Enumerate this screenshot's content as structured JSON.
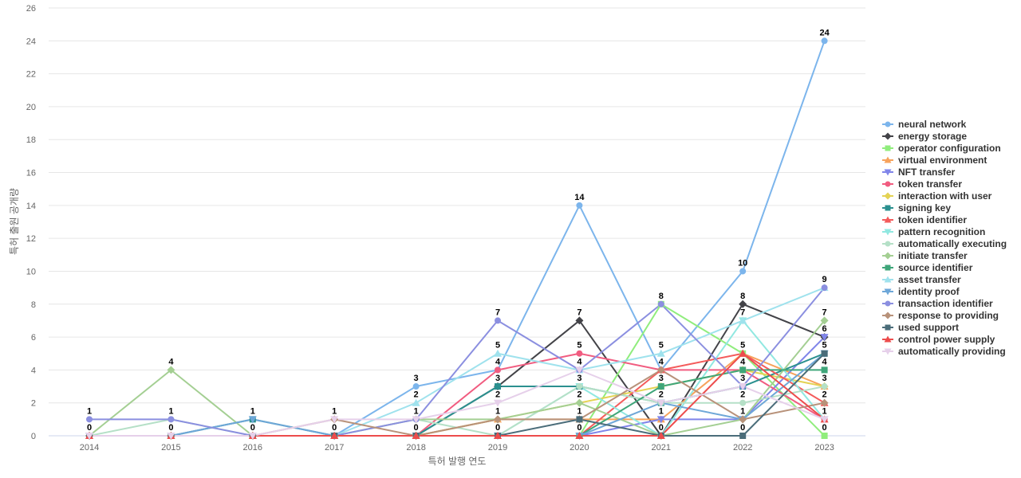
{
  "chart_data": {
    "type": "line",
    "title": "",
    "xlabel": "특허 발행 연도",
    "ylabel": "특허 출원 공개량",
    "categories": [
      "2014",
      "2015",
      "2016",
      "2017",
      "2018",
      "2019",
      "2020",
      "2021",
      "2022",
      "2023"
    ],
    "ylim": [
      0,
      26
    ],
    "yticks": [
      0,
      2,
      4,
      6,
      8,
      10,
      12,
      14,
      16,
      18,
      20,
      22,
      24,
      26
    ],
    "grid": "horizontal",
    "legend": "right",
    "series": [
      {
        "name": "neural network",
        "color": "#7cb5ec",
        "marker": "circle",
        "values": [
          0,
          0,
          0,
          0,
          3,
          4,
          14,
          4,
          10,
          24
        ]
      },
      {
        "name": "energy storage",
        "color": "#434348",
        "marker": "diamond",
        "values": [
          0,
          0,
          0,
          0,
          0,
          3,
          7,
          0,
          8,
          6
        ]
      },
      {
        "name": "operator configuration",
        "color": "#90ed7d",
        "marker": "square",
        "values": [
          0,
          0,
          0,
          0,
          0,
          0,
          0,
          8,
          5,
          0
        ]
      },
      {
        "name": "virtual environment",
        "color": "#f7a35c",
        "marker": "triangle",
        "values": [
          0,
          0,
          0,
          0,
          0,
          1,
          1,
          1,
          5,
          3
        ]
      },
      {
        "name": "NFT transfer",
        "color": "#8085e9",
        "marker": "triangle-down",
        "values": [
          0,
          0,
          0,
          0,
          0,
          0,
          0,
          1,
          1,
          6
        ]
      },
      {
        "name": "token transfer",
        "color": "#f15c80",
        "marker": "circle",
        "values": [
          0,
          0,
          0,
          0,
          0,
          4,
          5,
          4,
          4,
          1
        ]
      },
      {
        "name": "interaction with user",
        "color": "#e4d354",
        "marker": "diamond",
        "values": [
          0,
          0,
          0,
          0,
          0,
          1,
          2,
          3,
          4,
          3
        ]
      },
      {
        "name": "signing key",
        "color": "#2b908f",
        "marker": "square",
        "values": [
          0,
          0,
          1,
          0,
          0,
          3,
          3,
          2,
          3,
          5
        ]
      },
      {
        "name": "token identifier",
        "color": "#f45b5b",
        "marker": "triangle",
        "values": [
          0,
          0,
          0,
          0,
          0,
          0,
          0,
          4,
          5,
          2
        ]
      },
      {
        "name": "pattern recognition",
        "color": "#91e8e1",
        "marker": "triangle-down",
        "values": [
          0,
          0,
          0,
          0,
          0,
          0,
          3,
          0,
          7,
          1
        ]
      },
      {
        "name": "automatically executing",
        "color": "#b5e0c7",
        "marker": "circle",
        "values": [
          0,
          1,
          0,
          0,
          1,
          0,
          3,
          2,
          2,
          3
        ]
      },
      {
        "name": "initiate transfer",
        "color": "#a4cf93",
        "marker": "diamond",
        "values": [
          0,
          4,
          0,
          0,
          1,
          1,
          2,
          0,
          1,
          7
        ]
      },
      {
        "name": "source identifier",
        "color": "#3fa67a",
        "marker": "square",
        "values": [
          0,
          0,
          0,
          0,
          0,
          0,
          0,
          3,
          4,
          4
        ]
      },
      {
        "name": "asset transfer",
        "color": "#9fe2ed",
        "marker": "triangle",
        "values": [
          0,
          0,
          0,
          0,
          2,
          5,
          4,
          5,
          7,
          9
        ]
      },
      {
        "name": "identity proof",
        "color": "#6ea7d8",
        "marker": "triangle-down",
        "values": [
          0,
          0,
          1,
          0,
          0,
          0,
          0,
          2,
          1,
          5
        ]
      },
      {
        "name": "transaction identifier",
        "color": "#8b8fe0",
        "marker": "circle",
        "values": [
          1,
          1,
          0,
          0,
          1,
          7,
          4,
          8,
          3,
          9
        ]
      },
      {
        "name": "response to providing",
        "color": "#b8927a",
        "marker": "diamond",
        "values": [
          0,
          0,
          0,
          1,
          0,
          1,
          1,
          4,
          1,
          2
        ]
      },
      {
        "name": "used support",
        "color": "#4b6d7a",
        "marker": "square",
        "values": [
          0,
          0,
          0,
          0,
          0,
          0,
          1,
          0,
          0,
          5
        ]
      },
      {
        "name": "control power supply",
        "color": "#ed4c4c",
        "marker": "triangle",
        "values": [
          0,
          0,
          0,
          0,
          0,
          0,
          0,
          0,
          5,
          1
        ]
      },
      {
        "name": "automatically providing",
        "color": "#e6d0ea",
        "marker": "triangle-down",
        "values": [
          0,
          0,
          0,
          1,
          1,
          2,
          4,
          2,
          3,
          1
        ]
      }
    ],
    "data_labels": [
      {
        "series": "transaction identifier",
        "index": 0,
        "text": "1"
      },
      {
        "series": "neural network",
        "index": 0,
        "text": "0"
      },
      {
        "series": "initiate transfer",
        "index": 1,
        "text": "4"
      },
      {
        "series": "transaction identifier",
        "index": 1,
        "text": "1"
      },
      {
        "series": "neural network",
        "index": 1,
        "text": "0"
      },
      {
        "series": "signing key",
        "index": 2,
        "text": "1"
      },
      {
        "series": "neural network",
        "index": 2,
        "text": "0"
      },
      {
        "series": "response to providing",
        "index": 3,
        "text": "1"
      },
      {
        "series": "neural network",
        "index": 3,
        "text": "0"
      },
      {
        "series": "neural network",
        "index": 4,
        "text": "3"
      },
      {
        "series": "asset transfer",
        "index": 4,
        "text": "2"
      },
      {
        "series": "transaction identifier",
        "index": 4,
        "text": "1"
      },
      {
        "series": "energy storage",
        "index": 4,
        "text": "0"
      },
      {
        "series": "transaction identifier",
        "index": 5,
        "text": "7"
      },
      {
        "series": "asset transfer",
        "index": 5,
        "text": "5"
      },
      {
        "series": "token transfer",
        "index": 5,
        "text": "4"
      },
      {
        "series": "energy storage",
        "index": 5,
        "text": "3"
      },
      {
        "series": "automatically providing",
        "index": 5,
        "text": "2"
      },
      {
        "series": "virtual environment",
        "index": 5,
        "text": "1"
      },
      {
        "series": "operator configuration",
        "index": 5,
        "text": "0"
      },
      {
        "series": "neural network",
        "index": 6,
        "text": "14"
      },
      {
        "series": "energy storage",
        "index": 6,
        "text": "7"
      },
      {
        "series": "token transfer",
        "index": 6,
        "text": "5"
      },
      {
        "series": "asset transfer",
        "index": 6,
        "text": "4"
      },
      {
        "series": "signing key",
        "index": 6,
        "text": "3"
      },
      {
        "series": "interaction with user",
        "index": 6,
        "text": "2"
      },
      {
        "series": "used support",
        "index": 6,
        "text": "1"
      },
      {
        "series": "operator configuration",
        "index": 6,
        "text": "0"
      },
      {
        "series": "transaction identifier",
        "index": 7,
        "text": "8"
      },
      {
        "series": "asset transfer",
        "index": 7,
        "text": "5"
      },
      {
        "series": "token transfer",
        "index": 7,
        "text": "4"
      },
      {
        "series": "source identifier",
        "index": 7,
        "text": "3"
      },
      {
        "series": "signing key",
        "index": 7,
        "text": "2"
      },
      {
        "series": "virtual environment",
        "index": 7,
        "text": "1"
      },
      {
        "series": "energy storage",
        "index": 7,
        "text": "0"
      },
      {
        "series": "neural network",
        "index": 8,
        "text": "10"
      },
      {
        "series": "energy storage",
        "index": 8,
        "text": "8"
      },
      {
        "series": "asset transfer",
        "index": 8,
        "text": "7"
      },
      {
        "series": "operator configuration",
        "index": 8,
        "text": "5"
      },
      {
        "series": "token transfer",
        "index": 8,
        "text": "4"
      },
      {
        "series": "transaction identifier",
        "index": 8,
        "text": "3"
      },
      {
        "series": "automatically executing",
        "index": 8,
        "text": "2"
      },
      {
        "series": "NFT transfer",
        "index": 8,
        "text": "1"
      },
      {
        "series": "used support",
        "index": 8,
        "text": "0"
      },
      {
        "series": "neural network",
        "index": 9,
        "text": "24"
      },
      {
        "series": "transaction identifier",
        "index": 9,
        "text": "9"
      },
      {
        "series": "initiate transfer",
        "index": 9,
        "text": "7"
      },
      {
        "series": "energy storage",
        "index": 9,
        "text": "6"
      },
      {
        "series": "signing key",
        "index": 9,
        "text": "5"
      },
      {
        "series": "source identifier",
        "index": 9,
        "text": "4"
      },
      {
        "series": "virtual environment",
        "index": 9,
        "text": "3"
      },
      {
        "series": "response to providing",
        "index": 9,
        "text": "2"
      },
      {
        "series": "token transfer",
        "index": 9,
        "text": "1"
      },
      {
        "series": "operator configuration",
        "index": 9,
        "text": "0"
      }
    ]
  }
}
